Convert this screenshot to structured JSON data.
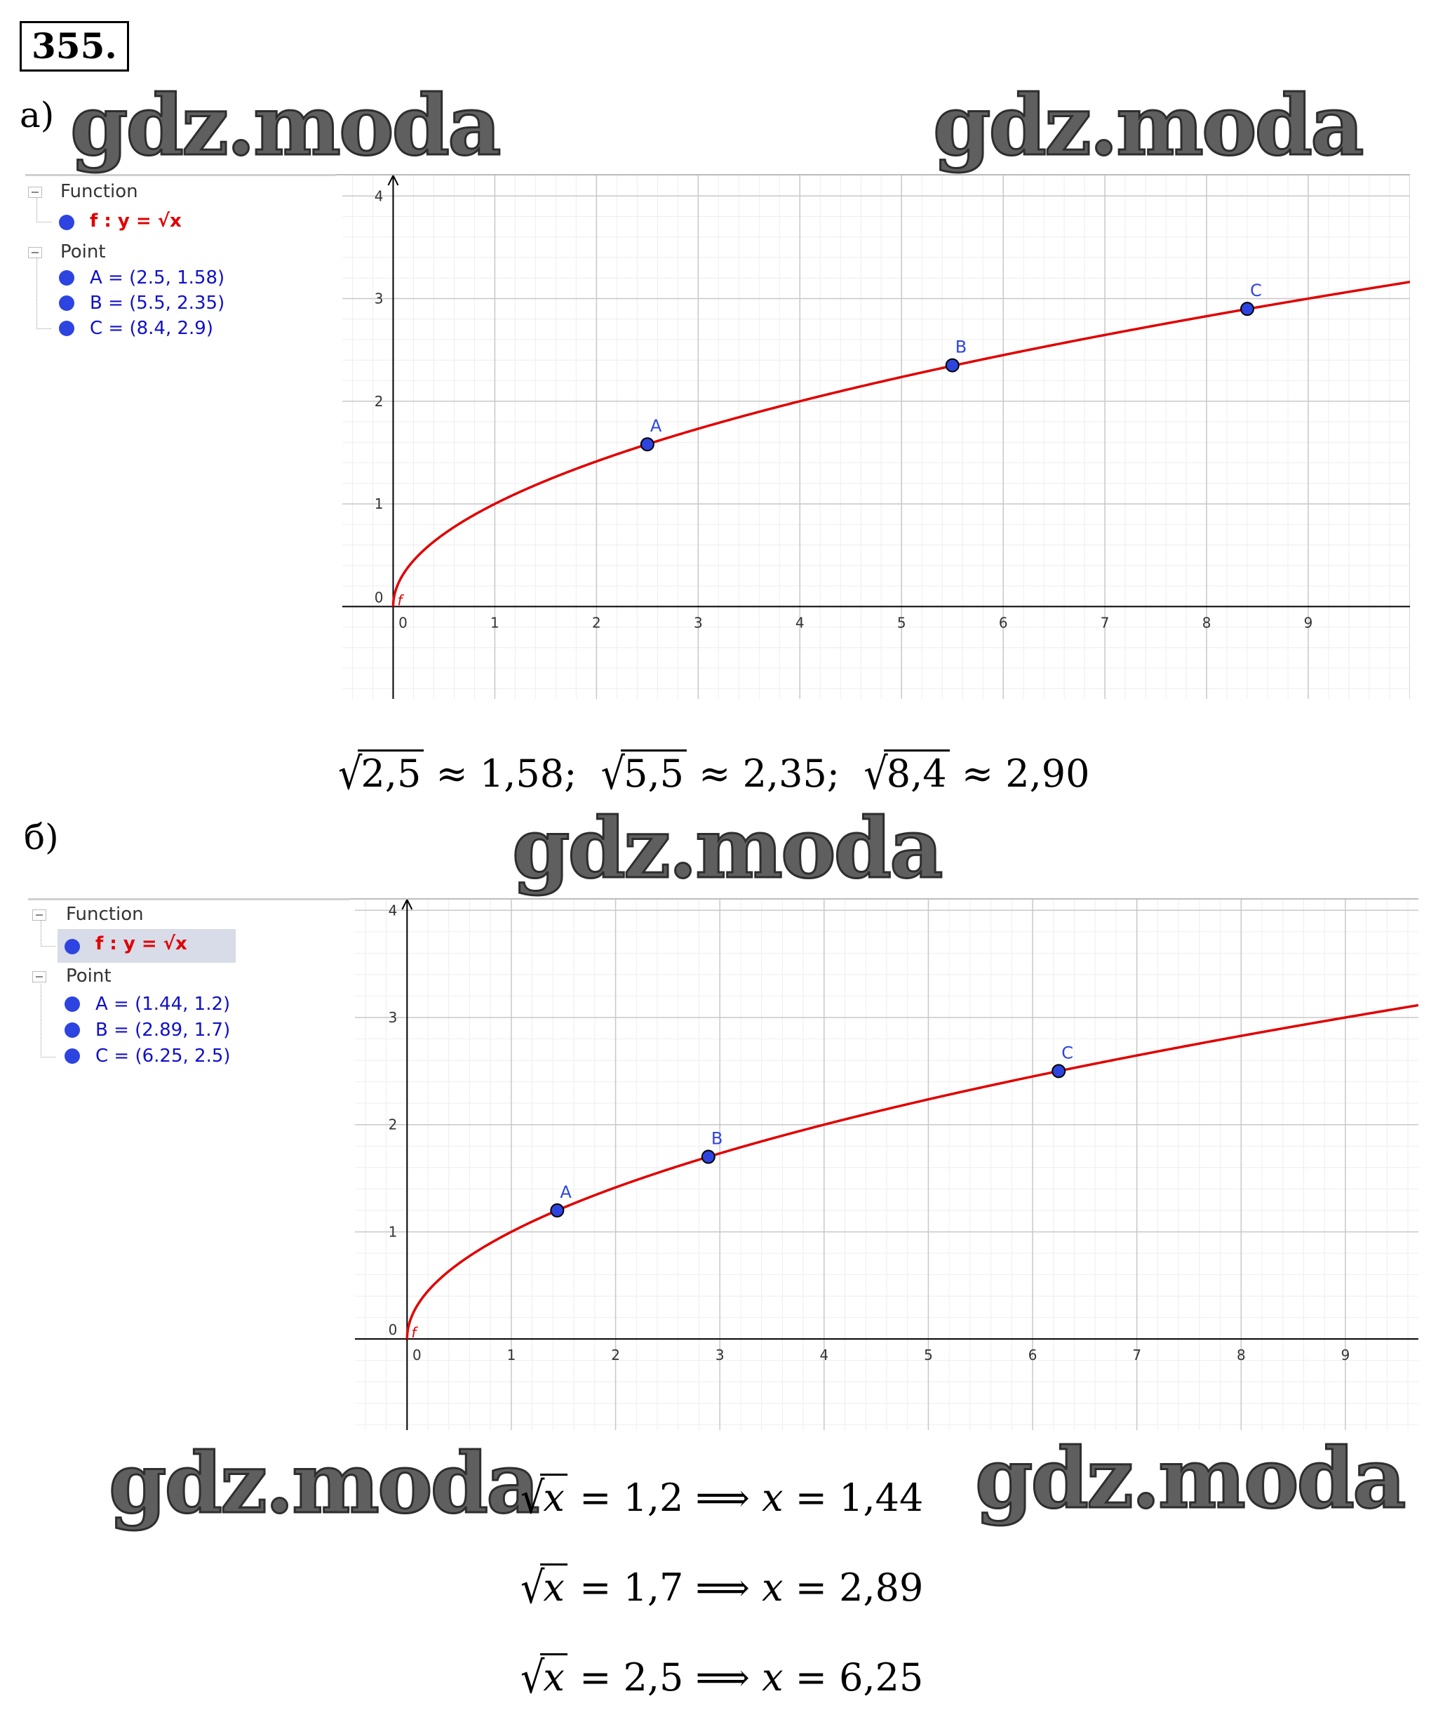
{
  "problem_number": "355.",
  "watermark": "gdz.moda",
  "part_a": {
    "label": "а)",
    "algebra": {
      "function_header": "Function",
      "function_label": "f : y = √x",
      "point_header": "Point",
      "points": [
        "A = (2.5, 1.58)",
        "B = (5.5, 2.35)",
        "C = (8.4, 2.9)"
      ]
    },
    "result_line": [
      "2,5",
      "≈ 1,58;",
      "5,5",
      "≈ 2,35;",
      "8,4",
      "≈ 2,90"
    ]
  },
  "part_b": {
    "label": "б)",
    "algebra": {
      "function_header": "Function",
      "function_label": "f : y = √x",
      "point_header": "Point",
      "points": [
        "A = (1.44, 1.2)",
        "B = (2.89, 1.7)",
        "C = (6.25, 2.5)"
      ]
    },
    "equations": [
      {
        "lhs": "x",
        "rhs": "= 1,2 ⟹",
        "var": "x",
        "result": "= 1,44"
      },
      {
        "lhs": "x",
        "rhs": "= 1,7 ⟹",
        "var": "x",
        "result": "= 2,89"
      },
      {
        "lhs": "x",
        "rhs": "= 2,5 ⟹",
        "var": "x",
        "result": "= 6,25"
      }
    ]
  },
  "chart_data": [
    {
      "type": "line",
      "function": "sqrt",
      "series_label": "f",
      "line_color": "#e00000",
      "point_color": "#2d44e0",
      "xlim": [
        -0.5,
        10
      ],
      "ylim": [
        -0.9,
        4.2
      ],
      "x_ticks": [
        0,
        1,
        2,
        3,
        4,
        5,
        6,
        7,
        8,
        9
      ],
      "y_ticks": [
        0,
        1,
        2,
        3,
        4
      ],
      "points": [
        {
          "name": "A",
          "x": 2.5,
          "y": 1.58
        },
        {
          "name": "B",
          "x": 5.5,
          "y": 2.35
        },
        {
          "name": "C",
          "x": 8.4,
          "y": 2.9
        }
      ]
    },
    {
      "type": "line",
      "function": "sqrt",
      "series_label": "f",
      "line_color": "#e00000",
      "point_color": "#2d44e0",
      "xlim": [
        -0.5,
        9.7
      ],
      "ylim": [
        -0.85,
        4.1
      ],
      "x_ticks": [
        0,
        1,
        2,
        3,
        4,
        5,
        6,
        7,
        8,
        9
      ],
      "y_ticks": [
        0,
        1,
        2,
        3,
        4
      ],
      "points": [
        {
          "name": "A",
          "x": 1.44,
          "y": 1.2
        },
        {
          "name": "B",
          "x": 2.89,
          "y": 1.7
        },
        {
          "name": "C",
          "x": 6.25,
          "y": 2.5
        }
      ]
    }
  ]
}
